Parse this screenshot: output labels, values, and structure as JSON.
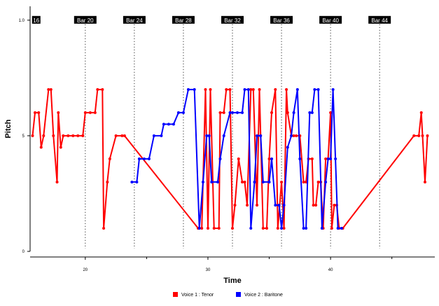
{
  "chart_data": {
    "type": "line",
    "title": "",
    "xlabel": "Time",
    "ylabel": "Pitch",
    "xlim": [
      15.5,
      48.5
    ],
    "ylim": [
      0,
      10.6
    ],
    "x_ticks": [
      20,
      30,
      40
    ],
    "x_minor_ticks": [
      25,
      35,
      45
    ],
    "y_ticks": [
      0,
      5,
      10
    ],
    "bar_markers": [
      {
        "label": "16",
        "x": 16
      },
      {
        "label": "Bar 20",
        "x": 20
      },
      {
        "label": "Bar 24",
        "x": 24
      },
      {
        "label": "Bar 28",
        "x": 28
      },
      {
        "label": "Bar 32",
        "x": 32
      },
      {
        "label": "Bar 36",
        "x": 36
      },
      {
        "label": "Bar 40",
        "x": 40
      },
      {
        "label": "Bar 44",
        "x": 44
      }
    ],
    "series": [
      {
        "name": "Voice 1 : Tenor",
        "color": "#ff0000",
        "points": [
          [
            15.7,
            5.0
          ],
          [
            15.9,
            6.0
          ],
          [
            16.2,
            6.0
          ],
          [
            16.4,
            4.5
          ],
          [
            16.6,
            5.0
          ],
          [
            17.0,
            7.0
          ],
          [
            17.2,
            7.0
          ],
          [
            17.4,
            5.0
          ],
          [
            17.7,
            3.0
          ],
          [
            17.8,
            6.0
          ],
          [
            18.0,
            4.5
          ],
          [
            18.2,
            5.0
          ],
          [
            18.6,
            5.0
          ],
          [
            19.0,
            5.0
          ],
          [
            19.4,
            5.0
          ],
          [
            19.8,
            5.0
          ],
          [
            20.0,
            6.0
          ],
          [
            20.4,
            6.0
          ],
          [
            20.8,
            6.0
          ],
          [
            21.0,
            7.0
          ],
          [
            21.4,
            7.0
          ],
          [
            21.5,
            1.0
          ],
          [
            21.8,
            3.0
          ],
          [
            22.0,
            4.0
          ],
          [
            22.5,
            5.0
          ],
          [
            23.0,
            5.0
          ],
          [
            23.2,
            5.0
          ],
          [
            29.2,
            1.0
          ],
          [
            29.5,
            1.0
          ],
          [
            29.8,
            7.0
          ],
          [
            30.0,
            1.0
          ],
          [
            30.2,
            7.0
          ],
          [
            30.5,
            1.0
          ],
          [
            30.9,
            1.0
          ],
          [
            31.0,
            6.0
          ],
          [
            31.3,
            6.0
          ],
          [
            31.5,
            7.0
          ],
          [
            31.8,
            7.0
          ],
          [
            32.0,
            1.0
          ],
          [
            32.2,
            2.0
          ],
          [
            32.5,
            4.0
          ],
          [
            32.8,
            3.0
          ],
          [
            33.0,
            3.0
          ],
          [
            33.2,
            2.0
          ],
          [
            33.5,
            7.0
          ],
          [
            33.7,
            7.0
          ],
          [
            34.0,
            2.0
          ],
          [
            34.2,
            7.0
          ],
          [
            34.5,
            1.0
          ],
          [
            34.8,
            1.0
          ],
          [
            35.0,
            4.0
          ],
          [
            35.2,
            6.0
          ],
          [
            35.5,
            7.0
          ],
          [
            35.7,
            1.0
          ],
          [
            36.0,
            3.0
          ],
          [
            36.2,
            1.0
          ],
          [
            36.4,
            7.0
          ],
          [
            36.5,
            6.0
          ],
          [
            36.8,
            5.0
          ],
          [
            37.0,
            5.0
          ],
          [
            37.2,
            5.0
          ],
          [
            37.5,
            5.0
          ],
          [
            37.8,
            3.0
          ],
          [
            38.0,
            3.0
          ],
          [
            38.2,
            4.0
          ],
          [
            38.5,
            4.0
          ],
          [
            38.6,
            2.0
          ],
          [
            38.8,
            2.0
          ],
          [
            39.0,
            3.0
          ],
          [
            39.2,
            3.0
          ],
          [
            39.4,
            1.0
          ],
          [
            39.6,
            4.0
          ],
          [
            39.8,
            4.0
          ],
          [
            40.0,
            6.0
          ],
          [
            40.1,
            1.0
          ],
          [
            40.3,
            2.0
          ],
          [
            40.5,
            2.0
          ],
          [
            40.7,
            1.0
          ],
          [
            41.0,
            1.0
          ],
          [
            46.8,
            5.0
          ],
          [
            47.2,
            5.0
          ],
          [
            47.4,
            6.0
          ],
          [
            47.5,
            5.0
          ],
          [
            47.7,
            3.0
          ],
          [
            47.9,
            5.0
          ]
        ]
      },
      {
        "name": "Voice 2 : Baritone",
        "color": "#0000ff",
        "points": [
          [
            23.8,
            3.0
          ],
          [
            24.2,
            3.0
          ],
          [
            24.4,
            4.0
          ],
          [
            24.8,
            4.0
          ],
          [
            25.2,
            4.0
          ],
          [
            25.6,
            5.0
          ],
          [
            26.2,
            5.0
          ],
          [
            26.4,
            5.5
          ],
          [
            26.8,
            5.5
          ],
          [
            27.2,
            5.5
          ],
          [
            27.6,
            6.0
          ],
          [
            28.0,
            6.0
          ],
          [
            28.4,
            7.0
          ],
          [
            28.9,
            7.0
          ],
          [
            29.3,
            1.0
          ],
          [
            29.6,
            3.0
          ],
          [
            29.9,
            5.0
          ],
          [
            30.1,
            5.0
          ],
          [
            30.3,
            3.0
          ],
          [
            30.8,
            3.0
          ],
          [
            31.0,
            4.0
          ],
          [
            31.3,
            5.0
          ],
          [
            31.8,
            6.0
          ],
          [
            32.0,
            6.0
          ],
          [
            32.4,
            6.0
          ],
          [
            32.8,
            6.0
          ],
          [
            33.0,
            7.0
          ],
          [
            33.3,
            7.0
          ],
          [
            33.5,
            1.0
          ],
          [
            33.8,
            3.0
          ],
          [
            34.0,
            5.0
          ],
          [
            34.3,
            5.0
          ],
          [
            34.5,
            3.0
          ],
          [
            35.0,
            3.0
          ],
          [
            35.2,
            4.0
          ],
          [
            35.5,
            2.0
          ],
          [
            35.8,
            2.0
          ],
          [
            36.0,
            1.0
          ],
          [
            36.2,
            2.0
          ],
          [
            36.5,
            4.5
          ],
          [
            36.8,
            5.0
          ],
          [
            37.0,
            6.0
          ],
          [
            37.3,
            7.0
          ],
          [
            37.5,
            4.0
          ],
          [
            37.8,
            1.0
          ],
          [
            38.0,
            1.0
          ],
          [
            38.3,
            6.0
          ],
          [
            38.5,
            6.0
          ],
          [
            38.7,
            7.0
          ],
          [
            39.0,
            7.0
          ],
          [
            39.3,
            1.0
          ],
          [
            39.6,
            3.0
          ],
          [
            39.8,
            4.0
          ],
          [
            40.0,
            4.0
          ],
          [
            40.2,
            7.0
          ],
          [
            40.4,
            4.0
          ],
          [
            40.6,
            1.0
          ],
          [
            40.9,
            1.0
          ]
        ]
      }
    ],
    "legend": {
      "placement": "bottom-center"
    },
    "grid": false
  }
}
